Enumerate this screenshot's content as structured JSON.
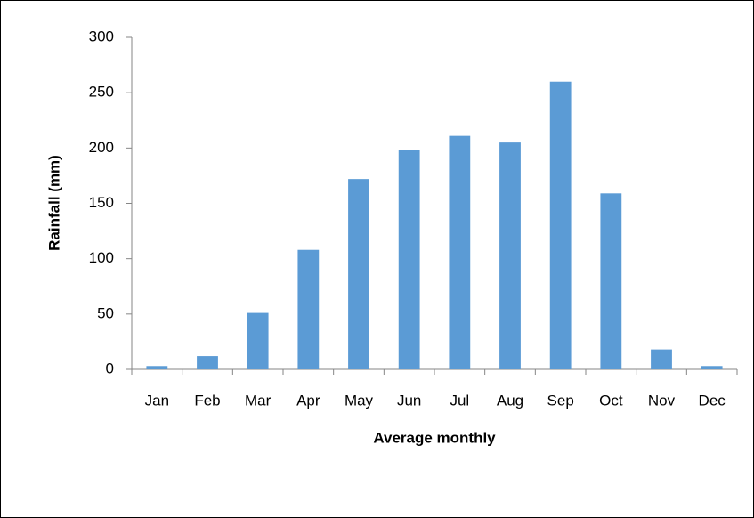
{
  "chart_data": {
    "type": "bar",
    "x_label": "Average monthly",
    "y_label": "Rainfall (mm)",
    "categories": [
      "Jan",
      "Feb",
      "Mar",
      "Apr",
      "May",
      "Jun",
      "Jul",
      "Aug",
      "Sep",
      "Oct",
      "Nov",
      "Dec"
    ],
    "values": [
      3,
      12,
      51,
      108,
      172,
      198,
      211,
      205,
      260,
      159,
      18,
      3
    ],
    "color": "#5b9bd5",
    "ylim": [
      0,
      300
    ],
    "yticks": [
      0,
      50,
      100,
      150,
      200,
      250,
      300
    ],
    "grid": false
  }
}
